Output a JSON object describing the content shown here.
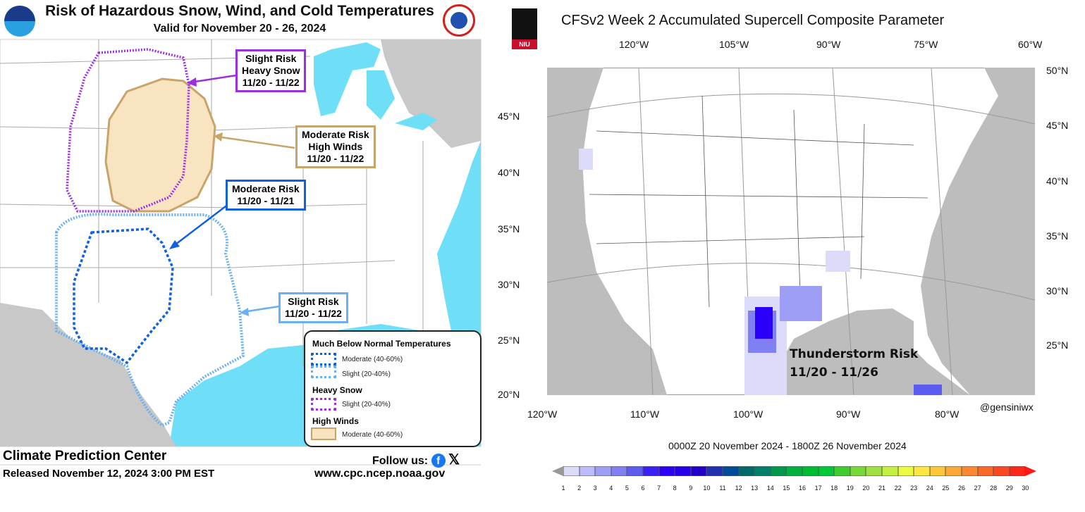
{
  "left_panel": {
    "title": "Risk of Hazardous Snow, Wind, and Cold Temperatures",
    "subtitle": "Valid for November 20 - 26, 2024",
    "logos": {
      "left": "NOAA",
      "right": "National Weather Service"
    },
    "callouts": [
      {
        "lines": [
          "Slight Risk",
          "Heavy Snow",
          "11/20 - 11/22"
        ],
        "color": "#9b30e0"
      },
      {
        "lines": [
          "Moderate Risk",
          "High Winds",
          "11/20 - 11/22"
        ],
        "color": "#c8a46a"
      },
      {
        "lines": [
          "Moderate Risk",
          "11/20 - 11/21"
        ],
        "color": "#1060e0"
      },
      {
        "lines": [
          "Slight Risk",
          "11/20 - 11/22"
        ],
        "color": "#6ab0f0"
      }
    ],
    "legend": {
      "cold_heading": "Much Below Normal Temperatures",
      "cold_moderate": "Moderate (40-60%)",
      "cold_slight": "Slight (20-40%)",
      "snow_heading": "Heavy Snow",
      "snow_slight": "Slight (20-40%)",
      "wind_heading": "High Winds",
      "wind_moderate": "Moderate (40-60%)"
    },
    "footer": {
      "org": "Climate Prediction Center",
      "released": "Released November 12, 2024 3:00 PM EST",
      "follow": "Follow us:",
      "url": "www.cpc.ncep.noaa.gov",
      "social_icons": [
        "facebook-icon",
        "x-icon"
      ]
    },
    "colors": {
      "water": "#6fdff8",
      "foreign_land": "#c8c8c8",
      "wind_fill": "#f8e4c0"
    }
  },
  "right_panel": {
    "title": "CFSv2 Week 2 Accumulated Supercell Composite Parameter",
    "logo": "NIU",
    "top_lon_labels": [
      "120°W",
      "105°W",
      "90°W",
      "75°W",
      "60°W"
    ],
    "bottom_lon_labels": [
      "120°W",
      "110°W",
      "100°W",
      "90°W",
      "80°W"
    ],
    "left_lat_labels": [
      "45°N",
      "40°N",
      "35°N",
      "30°N",
      "25°N",
      "20°N"
    ],
    "right_lat_labels": [
      "50°N",
      "45°N",
      "40°N",
      "35°N",
      "30°N",
      "25°N"
    ],
    "credit": "@gensiniwx",
    "date_range": "0000Z 20  November  2024  - 1800Z 26  November  2024",
    "annotation": [
      "Thunderstorm Risk",
      "11/20 - 11/26"
    ],
    "colorbar": {
      "labels": [
        "1",
        "2",
        "3",
        "4",
        "5",
        "6",
        "7",
        "8",
        "9",
        "10",
        "11",
        "12",
        "13",
        "14",
        "15",
        "16",
        "17",
        "18",
        "19",
        "20",
        "21",
        "22",
        "23",
        "24",
        "25",
        "26",
        "27",
        "28",
        "29",
        "30"
      ],
      "colors": [
        "#dcdcfa",
        "#bcbcf8",
        "#9e9ef6",
        "#8080f2",
        "#5c5cf0",
        "#3a20f4",
        "#2c00f8",
        "#2400ea",
        "#2200c8",
        "#2030b0",
        "#004c9a",
        "#006a6a",
        "#00806a",
        "#00984a",
        "#00b040",
        "#00bc30",
        "#00c838",
        "#40cc30",
        "#78d838",
        "#a0e040",
        "#c4f040",
        "#ecfa40",
        "#fce840",
        "#fcc838",
        "#fca838",
        "#fc8830",
        "#fc6828",
        "#fc4820",
        "#fc2818"
      ],
      "extend_high_color": "#fc1818"
    }
  }
}
